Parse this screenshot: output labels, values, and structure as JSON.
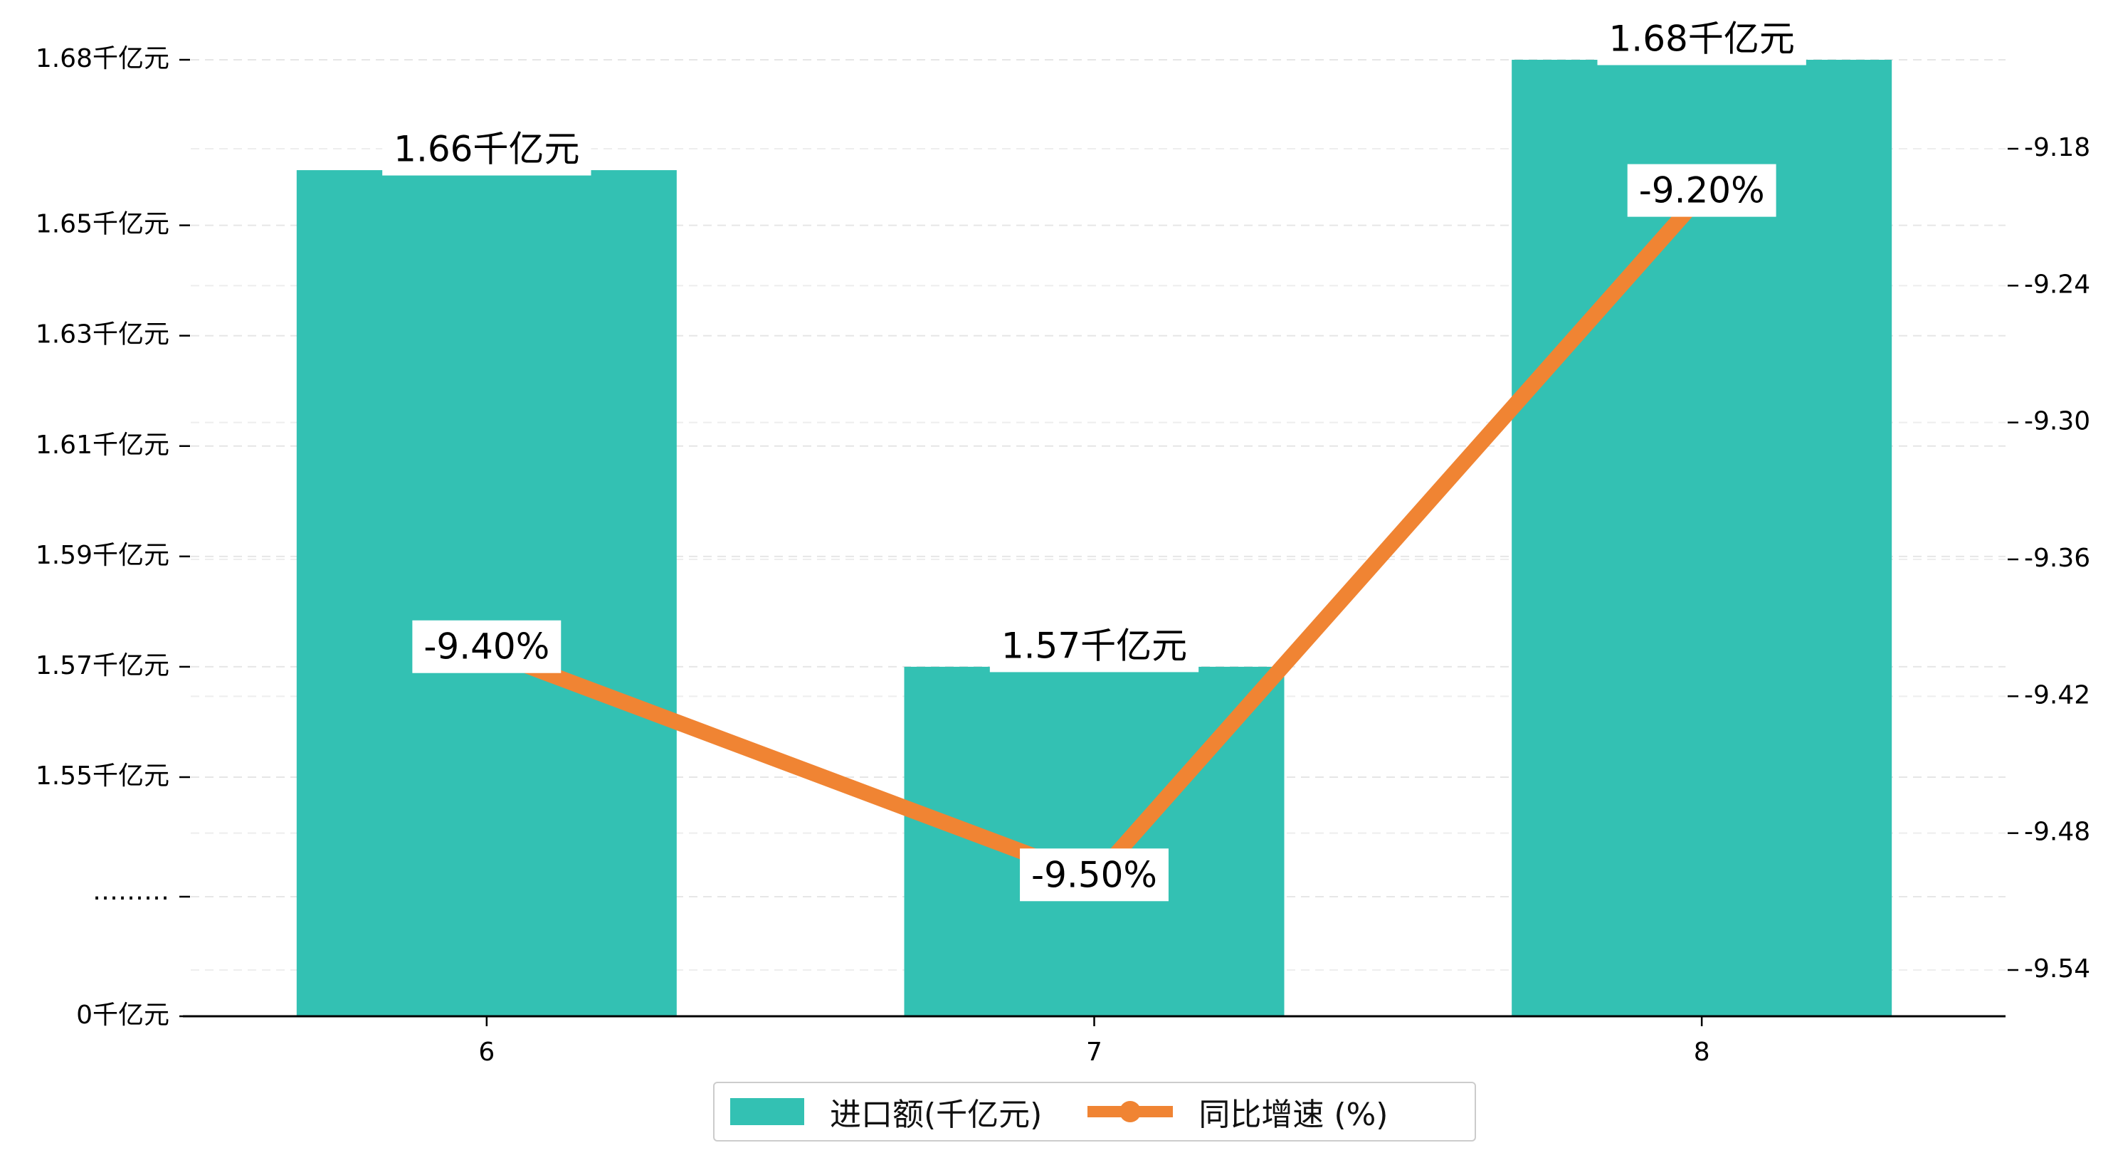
{
  "chart_data": {
    "type": "bar+line",
    "categories": [
      "6",
      "7",
      "8"
    ],
    "series": [
      {
        "name": "进口额(千亿元)",
        "type": "bar",
        "axis": "left",
        "values": [
          1.66,
          1.57,
          1.68
        ],
        "labels": [
          "1.66千亿元",
          "1.57千亿元",
          "1.68千亿元"
        ],
        "color": "#33c1b3"
      },
      {
        "name": "同比增速 (%)",
        "type": "line",
        "axis": "right",
        "values": [
          -9.4,
          -9.5,
          -9.2
        ],
        "labels": [
          "-9.40%",
          "-9.50%",
          "-9.20%"
        ],
        "color": "#f08433"
      }
    ],
    "left_axis": {
      "broken": true,
      "break_label": "………",
      "ticks": [
        {
          "value": 0,
          "label": "0千亿元"
        },
        {
          "value": 1.55,
          "label": "1.55千亿元"
        },
        {
          "value": 1.57,
          "label": "1.57千亿元"
        },
        {
          "value": 1.59,
          "label": "1.59千亿元"
        },
        {
          "value": 1.61,
          "label": "1.61千亿元"
        },
        {
          "value": 1.63,
          "label": "1.63千亿元"
        },
        {
          "value": 1.65,
          "label": "1.65千亿元"
        },
        {
          "value": 1.68,
          "label": "1.68千亿元"
        }
      ]
    },
    "right_axis": {
      "ylim": [
        -9.56,
        -9.14
      ],
      "ticks": [
        -9.54,
        -9.48,
        -9.42,
        -9.36,
        -9.3,
        -9.24,
        -9.18
      ],
      "tick_labels": [
        "-9.54",
        "-9.48",
        "-9.42",
        "-9.36",
        "-9.30",
        "-9.24",
        "-9.18"
      ]
    },
    "grid": "horizontal-dashed",
    "legend": "bottom-center"
  }
}
